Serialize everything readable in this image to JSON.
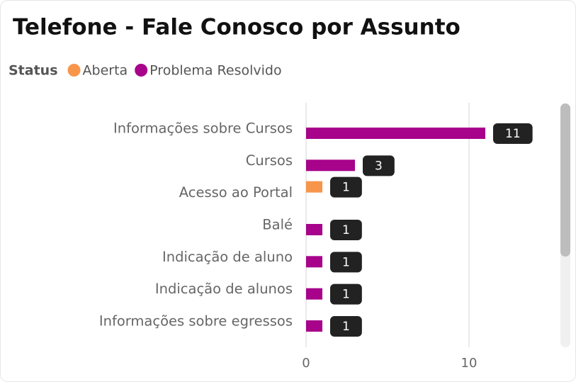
{
  "chart_data": {
    "type": "bar",
    "orientation": "horizontal",
    "title": "Telefone - Fale Conosco por Assunto",
    "legend_title": "Status",
    "categories": [
      "Informações sobre Cursos",
      "Cursos",
      "Acesso ao Portal",
      "Balé",
      "Indicação de aluno",
      "Indicação de alunos",
      "Informações sobre egressos"
    ],
    "series": [
      {
        "name": "Aberta",
        "color": "#f7964a",
        "values": [
          null,
          null,
          1,
          null,
          null,
          null,
          null
        ]
      },
      {
        "name": "Problema Resolvido",
        "color": "#a7038b",
        "values": [
          11,
          3,
          null,
          1,
          1,
          1,
          1
        ]
      }
    ],
    "xlim": [
      0,
      14.3
    ],
    "xticks": [
      0,
      10
    ],
    "grid": true,
    "data_labels": true
  }
}
